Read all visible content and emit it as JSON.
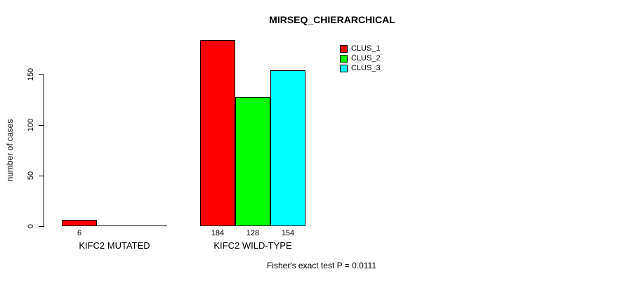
{
  "chart_data": {
    "type": "bar",
    "title": "MIRSEQ_CHIERARCHICAL",
    "ylabel": "number of cases",
    "xlabel": "",
    "categories": [
      "KIFC2 MUTATED",
      "KIFC2 WILD-TYPE"
    ],
    "series": [
      {
        "name": "CLUS_1",
        "color": "#ff0000",
        "values": [
          6,
          184
        ]
      },
      {
        "name": "CLUS_2",
        "color": "#00ff00",
        "values": [
          0,
          128
        ]
      },
      {
        "name": "CLUS_3",
        "color": "#00ffff",
        "values": [
          0,
          154
        ]
      }
    ],
    "yticks": [
      0,
      50,
      100,
      150
    ],
    "axis_max": 150,
    "grid": false,
    "legend_position": "top-right",
    "bar_value_labels": true,
    "footnote": "Fisher's exact test P = 0.0111"
  },
  "colors": {
    "background": "#ffffff",
    "axis": "#000000",
    "bar_border": "#000000",
    "text": "#000000"
  }
}
